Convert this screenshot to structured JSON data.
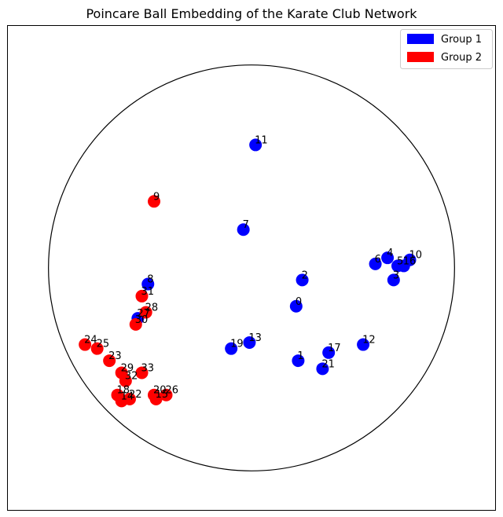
{
  "chart_data": {
    "type": "scatter",
    "title": "Poincare Ball Embedding of the Karate Club Network",
    "xlabel": "",
    "ylabel": "",
    "xlim": [
      -1.2,
      1.2
    ],
    "ylim": [
      -1.2,
      1.2
    ],
    "grid": false,
    "axis_ticks": false,
    "unit_circle": true,
    "legend": {
      "placement": "top-right",
      "entries": [
        {
          "label": "Group 1",
          "color": "#0000ff"
        },
        {
          "label": "Group 2",
          "color": "#ff0000"
        }
      ]
    },
    "series": [
      {
        "name": "Group 1",
        "color": "#0000ff",
        "points": [
          {
            "label": "0",
            "x": 0.22,
            "y": -0.19
          },
          {
            "label": "1",
            "x": 0.23,
            "y": -0.46
          },
          {
            "label": "2",
            "x": 0.25,
            "y": -0.06
          },
          {
            "label": "3",
            "x": 0.7,
            "y": -0.06
          },
          {
            "label": "4",
            "x": 0.67,
            "y": 0.05
          },
          {
            "label": "5",
            "x": 0.72,
            "y": 0.01
          },
          {
            "label": "6",
            "x": 0.61,
            "y": 0.02
          },
          {
            "label": "7",
            "x": -0.04,
            "y": 0.19
          },
          {
            "label": "8",
            "x": -0.51,
            "y": -0.08
          },
          {
            "label": "10",
            "x": 0.78,
            "y": 0.04
          },
          {
            "label": "11",
            "x": 0.02,
            "y": 0.61
          },
          {
            "label": "12",
            "x": 0.55,
            "y": -0.38
          },
          {
            "label": "13",
            "x": -0.01,
            "y": -0.37
          },
          {
            "label": "16",
            "x": 0.75,
            "y": 0.01
          },
          {
            "label": "17",
            "x": 0.38,
            "y": -0.42
          },
          {
            "label": "19",
            "x": -0.1,
            "y": -0.4
          },
          {
            "label": "21",
            "x": 0.35,
            "y": -0.5
          },
          {
            "label": "27",
            "x": -0.56,
            "y": -0.25
          }
        ]
      },
      {
        "name": "Group 2",
        "color": "#ff0000",
        "points": [
          {
            "label": "9",
            "x": -0.48,
            "y": 0.33
          },
          {
            "label": "14",
            "x": -0.64,
            "y": -0.66
          },
          {
            "label": "15",
            "x": -0.47,
            "y": -0.65
          },
          {
            "label": "18",
            "x": -0.66,
            "y": -0.63
          },
          {
            "label": "20",
            "x": -0.48,
            "y": -0.63
          },
          {
            "label": "22",
            "x": -0.6,
            "y": -0.65
          },
          {
            "label": "23",
            "x": -0.7,
            "y": -0.46
          },
          {
            "label": "24",
            "x": -0.82,
            "y": -0.38
          },
          {
            "label": "25",
            "x": -0.76,
            "y": -0.4
          },
          {
            "label": "26",
            "x": -0.42,
            "y": -0.63
          },
          {
            "label": "28",
            "x": -0.52,
            "y": -0.22
          },
          {
            "label": "29",
            "x": -0.64,
            "y": -0.52
          },
          {
            "label": "30",
            "x": -0.57,
            "y": -0.28
          },
          {
            "label": "31",
            "x": -0.54,
            "y": -0.14
          },
          {
            "label": "32",
            "x": -0.62,
            "y": -0.56
          },
          {
            "label": "33",
            "x": -0.54,
            "y": -0.52
          }
        ]
      }
    ]
  }
}
